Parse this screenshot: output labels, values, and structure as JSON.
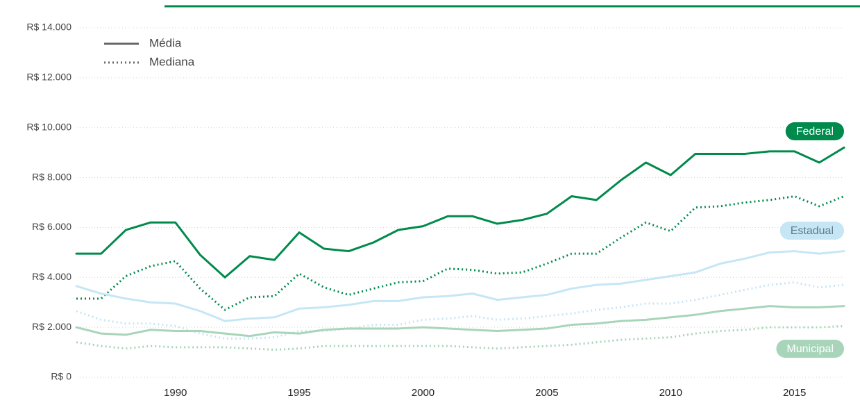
{
  "chart_data": {
    "type": "line",
    "x": [
      1986,
      1987,
      1988,
      1989,
      1990,
      1991,
      1992,
      1993,
      1994,
      1995,
      1996,
      1997,
      1998,
      1999,
      2000,
      2001,
      2002,
      2003,
      2004,
      2005,
      2006,
      2007,
      2008,
      2009,
      2010,
      2011,
      2012,
      2013,
      2014,
      2015,
      2016,
      2017
    ],
    "xlim": [
      1986,
      2017
    ],
    "xticks": [
      1990,
      1995,
      2000,
      2005,
      2010,
      2015
    ],
    "ylim": [
      0,
      14000
    ],
    "yticks": [
      {
        "value": 0,
        "label": "R$ 0"
      },
      {
        "value": 2000,
        "label": "R$ 2.000"
      },
      {
        "value": 4000,
        "label": "R$ 4.000"
      },
      {
        "value": 6000,
        "label": "R$ 6.000"
      },
      {
        "value": 8000,
        "label": "R$ 8.000"
      },
      {
        "value": 10000,
        "label": "R$ 10.000"
      },
      {
        "value": 12000,
        "label": "R$ 12.000"
      },
      {
        "value": 14000,
        "label": "R$ 14.000"
      }
    ],
    "grid": true,
    "line_styles": [
      {
        "name": "Média",
        "dash": "solid"
      },
      {
        "name": "Mediana",
        "dash": "dotted"
      }
    ],
    "series": [
      {
        "name": "Federal",
        "color": "#008a4c",
        "label_text_color": "#ffffff",
        "values": [
          4950,
          4950,
          5900,
          6200,
          6200,
          4900,
          4000,
          4850,
          4700,
          5800,
          5150,
          5050,
          5400,
          5900,
          6050,
          6450,
          6450,
          6150,
          6300,
          6550,
          7250,
          7100,
          7900,
          8600,
          8100,
          8950,
          8950,
          8950,
          9050,
          9050,
          8600,
          9200
        ],
        "median_values": [
          3150,
          3150,
          4050,
          4450,
          4650,
          3550,
          2700,
          3200,
          3250,
          4150,
          3600,
          3300,
          3550,
          3800,
          3850,
          4350,
          4300,
          4150,
          4200,
          4550,
          4950,
          4950,
          5600,
          6200,
          5850,
          6800,
          6850,
          7000,
          7100,
          7250,
          6850,
          7250
        ]
      },
      {
        "name": "Estadual",
        "color": "#c6e6f6",
        "label_text_color": "#5b7b8a",
        "values": [
          3650,
          3350,
          3150,
          3000,
          2950,
          2650,
          2250,
          2350,
          2400,
          2750,
          2800,
          2900,
          3050,
          3050,
          3200,
          3250,
          3350,
          3100,
          3200,
          3300,
          3550,
          3700,
          3750,
          3900,
          4050,
          4200,
          4550,
          4750,
          5000,
          5050,
          4950,
          5050
        ],
        "median_values": [
          2650,
          2300,
          2150,
          2150,
          2050,
          1750,
          1550,
          1550,
          1600,
          1850,
          1850,
          1950,
          2100,
          2100,
          2300,
          2350,
          2450,
          2300,
          2350,
          2450,
          2550,
          2700,
          2800,
          2950,
          2950,
          3100,
          3300,
          3500,
          3700,
          3800,
          3600,
          3700
        ]
      },
      {
        "name": "Municipal",
        "color": "#a8d5b9",
        "label_text_color": "#ffffff",
        "values": [
          2000,
          1750,
          1700,
          1900,
          1850,
          1850,
          1750,
          1650,
          1800,
          1750,
          1900,
          1950,
          1950,
          1950,
          2000,
          1950,
          1900,
          1850,
          1900,
          1950,
          2100,
          2150,
          2250,
          2300,
          2400,
          2500,
          2650,
          2750,
          2850,
          2800,
          2800,
          2850
        ],
        "median_values": [
          1400,
          1250,
          1150,
          1250,
          1200,
          1200,
          1200,
          1150,
          1100,
          1150,
          1250,
          1250,
          1250,
          1250,
          1250,
          1250,
          1200,
          1150,
          1200,
          1250,
          1300,
          1400,
          1500,
          1550,
          1600,
          1750,
          1850,
          1900,
          2000,
          2000,
          2000,
          2050
        ]
      }
    ]
  }
}
